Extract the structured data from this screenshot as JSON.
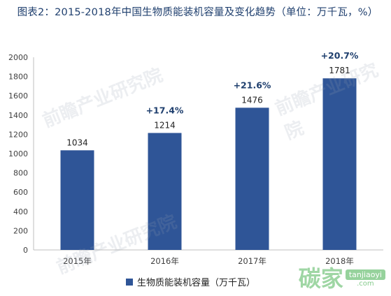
{
  "title": "图表2：2015-2018年中国生物质能装机容量及变化趋势（单位：万千瓦，%）",
  "chart_data": {
    "type": "bar",
    "categories": [
      "2015年",
      "2016年",
      "2017年",
      "2018年"
    ],
    "series": [
      {
        "name": "生物质能装机容量（万千瓦）",
        "values": [
          1034,
          1214,
          1476,
          1781
        ],
        "growth_labels": [
          "",
          "+17.4%",
          "+21.6%",
          "+20.7%"
        ]
      }
    ],
    "ylim": [
      0,
      2000
    ],
    "yticks": [
      0,
      200,
      400,
      600,
      800,
      1000,
      1200,
      1400,
      1600,
      1800,
      2000
    ],
    "grid": false,
    "legend": "bottom",
    "bar_color": "#2f5597"
  },
  "legend_label": "生物质能装机容量（万千瓦）",
  "watermark_text": "前瞻产业研究院",
  "brand": {
    "name": "碳家",
    "site": "tanjiaoyi",
    "domain": ".com"
  }
}
